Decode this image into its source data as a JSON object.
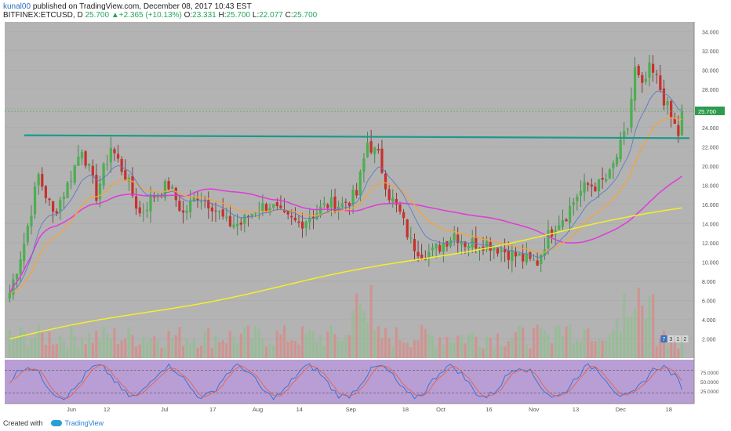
{
  "header": {
    "user": "kunal00",
    "published_text": "published on TradingView.com, December 08, 2017 10:43 EST",
    "symbol": "BITFINEX:ETCUSD, D",
    "last": "25.700",
    "change_arrow": "▲",
    "change": "+2.365 (+10.13%)",
    "o_label": "O:",
    "o": "23.331",
    "h_label": "H:",
    "h": "25.700",
    "l_label": "L:",
    "l": "22.077",
    "c_label": "C:",
    "c": "25.700"
  },
  "footer": {
    "created_with": "Created with",
    "brand": "TradingView"
  },
  "chart_data": {
    "type": "candlestick",
    "price_axis": {
      "ticks": [
        "34.000",
        "32.000",
        "30.000",
        "28.000",
        "26.000",
        "24.000",
        "22.000",
        "20.000",
        "18.000",
        "16.000",
        "14.000",
        "12.000",
        "10.000",
        "8.000",
        "6.000",
        "4.000",
        "2.000"
      ],
      "ylim": [
        0,
        35
      ]
    },
    "last_price_label": "25.700",
    "time_axis": {
      "ticks": [
        "Jun",
        "12",
        "Jul",
        "17",
        "Aug",
        "14",
        "Sep",
        "18",
        "Oct",
        "16",
        "Nov",
        "13",
        "Dec",
        "18"
      ]
    },
    "resistance_level": 23.0,
    "price_anchors": [
      [
        0,
        6.8
      ],
      [
        4,
        12
      ],
      [
        8,
        19
      ],
      [
        12,
        15
      ],
      [
        16,
        18
      ],
      [
        20,
        22
      ],
      [
        24,
        17
      ],
      [
        28,
        22
      ],
      [
        32,
        19
      ],
      [
        36,
        15
      ],
      [
        40,
        17
      ],
      [
        44,
        18
      ],
      [
        48,
        15
      ],
      [
        52,
        17
      ],
      [
        56,
        16
      ],
      [
        60,
        14
      ],
      [
        64,
        14
      ],
      [
        68,
        15.5
      ],
      [
        72,
        16
      ],
      [
        76,
        14.5
      ],
      [
        80,
        14
      ],
      [
        84,
        15
      ],
      [
        88,
        16
      ],
      [
        92,
        16
      ],
      [
        96,
        17
      ],
      [
        99,
        22.5
      ],
      [
        102,
        21
      ],
      [
        105,
        17
      ],
      [
        108,
        15
      ],
      [
        111,
        12
      ],
      [
        114,
        11
      ],
      [
        117,
        11
      ],
      [
        120,
        12
      ],
      [
        123,
        13
      ],
      [
        126,
        12
      ],
      [
        129,
        12
      ],
      [
        132,
        12
      ],
      [
        135,
        11.5
      ],
      [
        138,
        11
      ],
      [
        141,
        10.5
      ],
      [
        144,
        10
      ],
      [
        146,
        10
      ],
      [
        148,
        12
      ],
      [
        151,
        14
      ],
      [
        154,
        15
      ],
      [
        157,
        17
      ],
      [
        160,
        18
      ],
      [
        163,
        18
      ],
      [
        166,
        19
      ],
      [
        169,
        22
      ],
      [
        171,
        24
      ],
      [
        173,
        30
      ],
      [
        175,
        28
      ],
      [
        177,
        30
      ],
      [
        179,
        29
      ],
      [
        181,
        27
      ],
      [
        183,
        25
      ],
      [
        185,
        23.3
      ],
      [
        186,
        25.7
      ]
    ],
    "candle_count": 187,
    "series": [
      {
        "name": "EMA 10",
        "color": "#5b7cc4",
        "period": 10
      },
      {
        "name": "EMA 21",
        "color": "#f5a33a",
        "period": 21
      },
      {
        "name": "SMA 50",
        "color": "#e03ad8",
        "period": 50
      },
      {
        "name": "SMA 200",
        "color": "#f2ef2a"
      }
    ],
    "volume_labels": [
      "7",
      "3",
      "1",
      "2"
    ],
    "stoch_rsi": {
      "ticks": [
        "75.0000",
        "50.0000",
        "25.0000"
      ],
      "levels": [
        20,
        80
      ]
    }
  },
  "colors": {
    "up": "#4caf50",
    "down": "#c9302c",
    "bg": "#b3b3b3",
    "stoch_bg": "#b89ed4",
    "resistance": "#1a9a8a"
  }
}
